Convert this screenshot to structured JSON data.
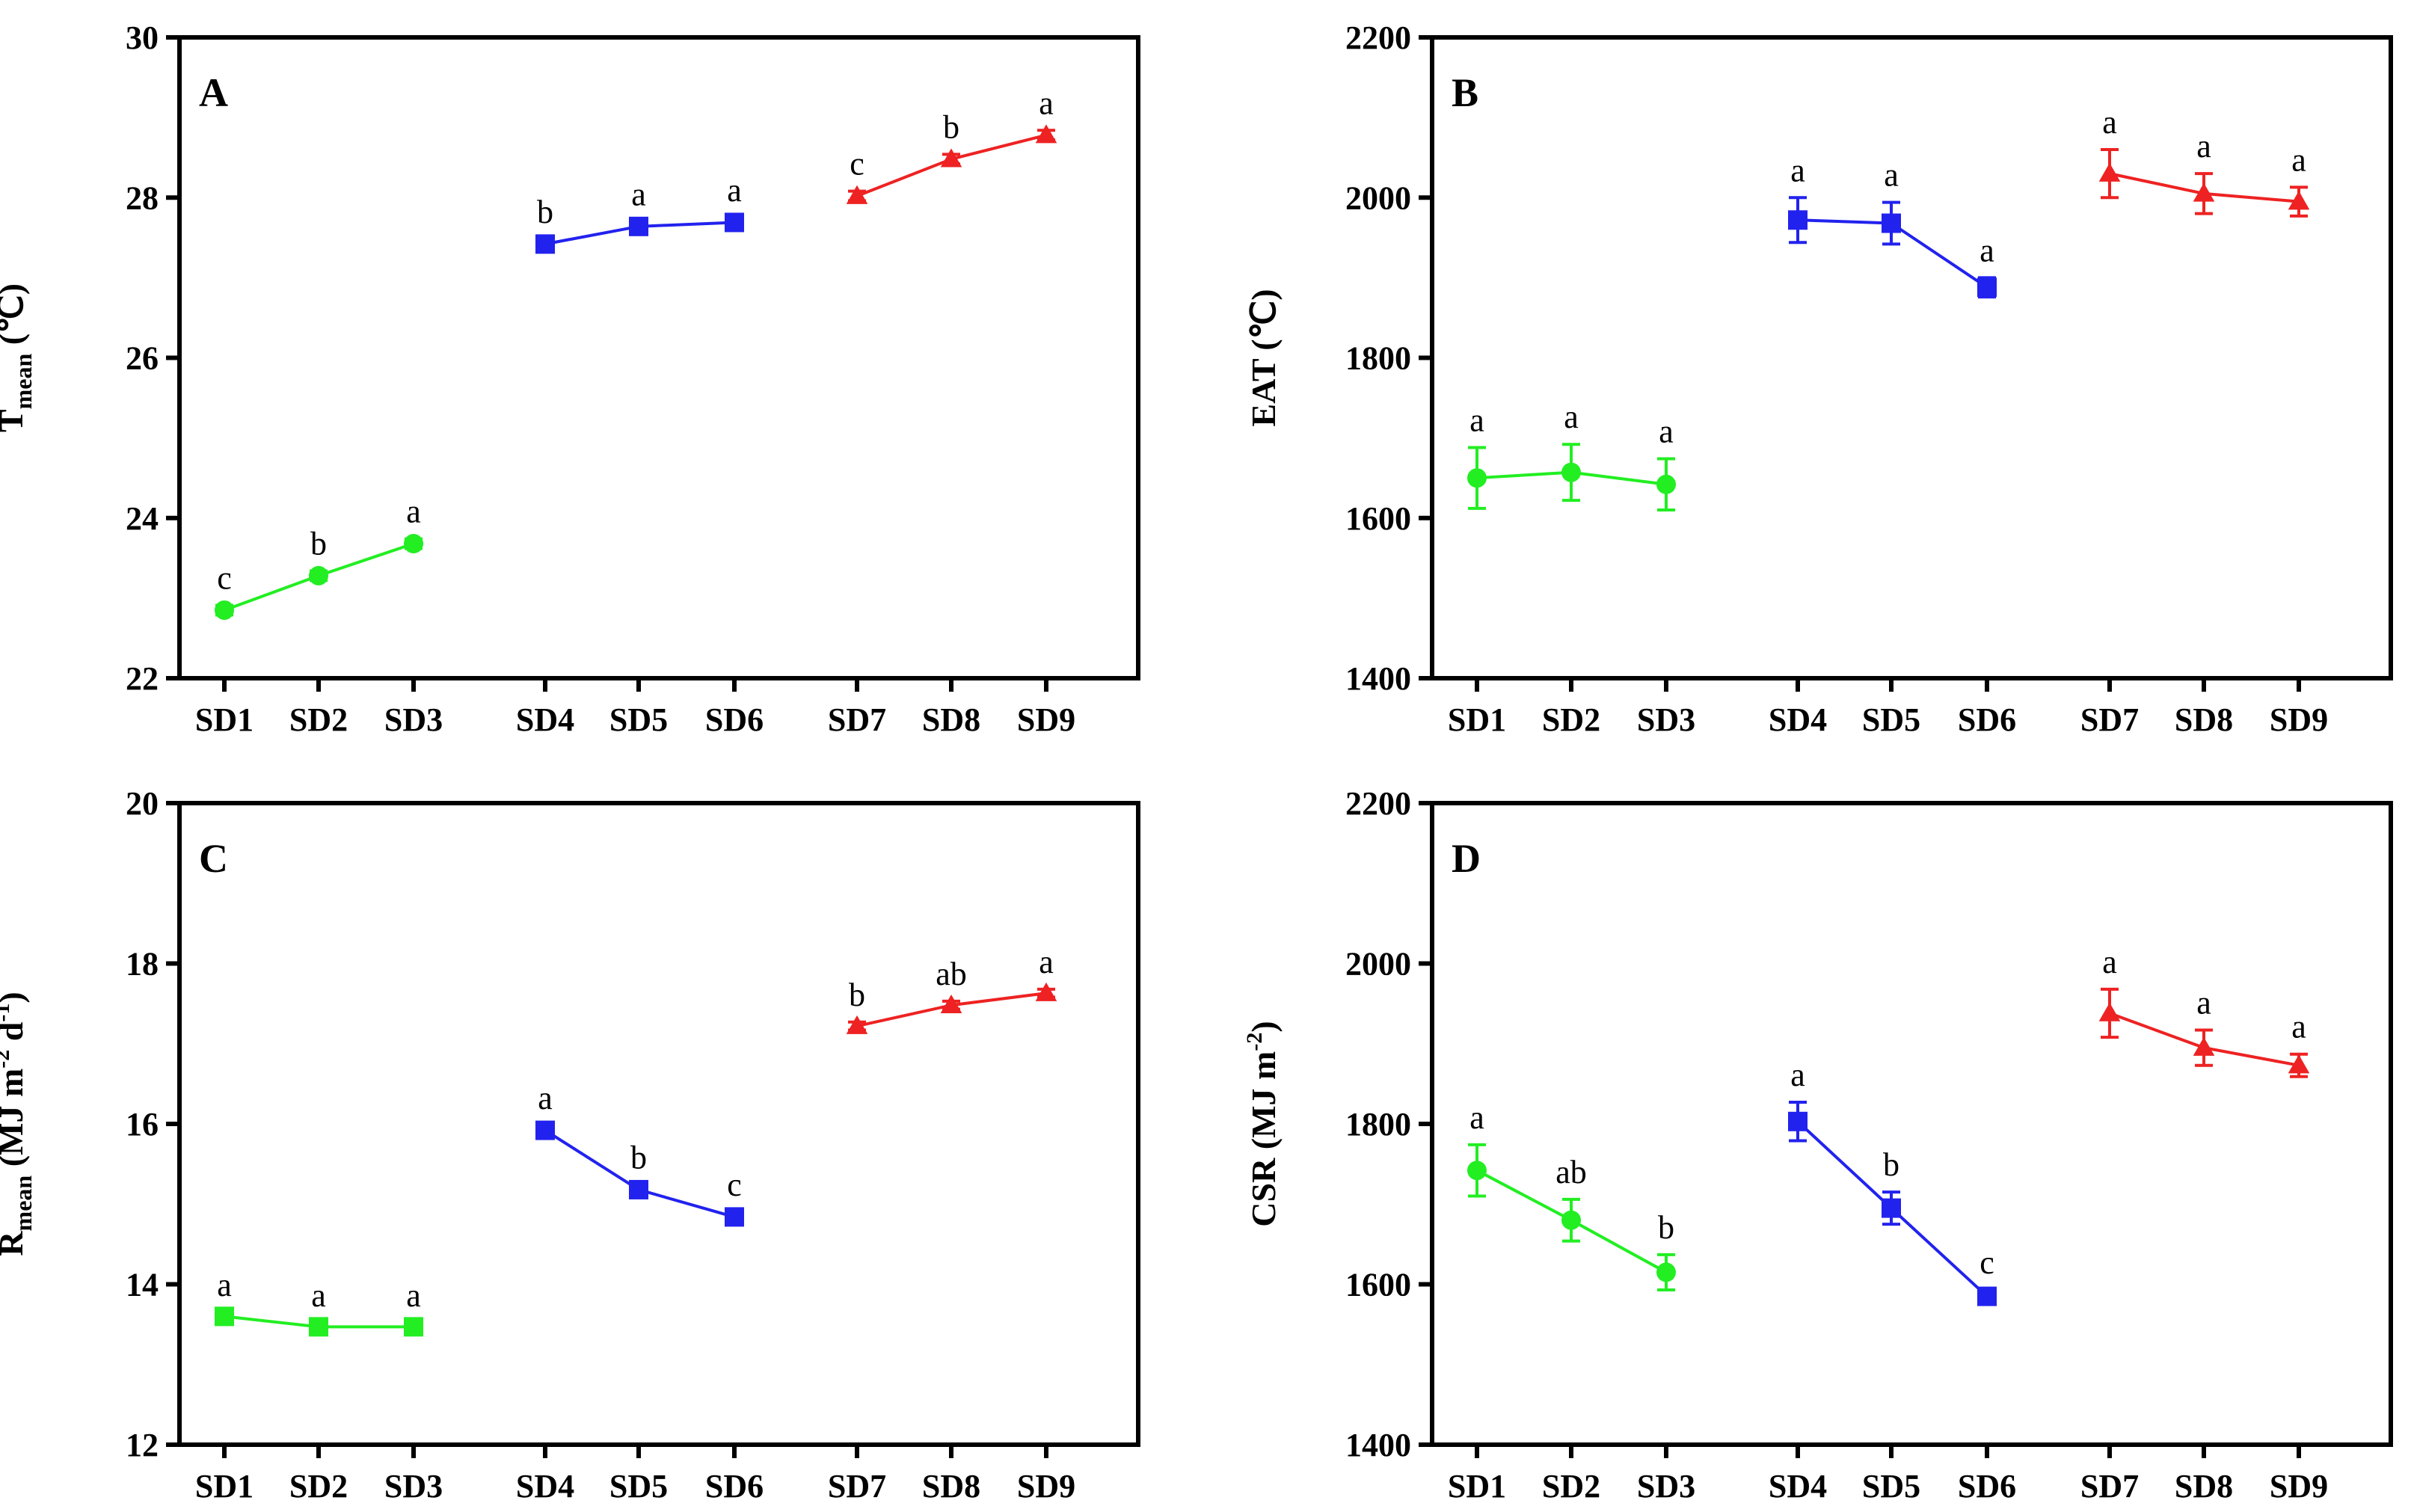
{
  "chart_data": [
    {
      "type": "line",
      "panel": "A",
      "ylabel": {
        "main": "T",
        "sub": "mean",
        "rest": " (℃)"
      },
      "ylim": [
        22,
        30
      ],
      "yticks": [
        22,
        24,
        26,
        28,
        30
      ],
      "categories": [
        "SD1",
        "SD2",
        "SD3",
        "SD4",
        "SD5",
        "SD6",
        "SD7",
        "SD8",
        "SD9"
      ],
      "series": [
        {
          "color": "#22ee22",
          "marker": "circle",
          "x": [
            "SD1",
            "SD2",
            "SD3"
          ],
          "values": [
            22.85,
            23.28,
            23.68
          ],
          "err": [
            0.06,
            0.06,
            0.06
          ],
          "labels": [
            "c",
            "b",
            "a"
          ]
        },
        {
          "color": "#2222ee",
          "marker": "square",
          "x": [
            "SD4",
            "SD5",
            "SD6"
          ],
          "values": [
            27.42,
            27.64,
            27.69
          ],
          "err": [
            0.06,
            0.06,
            0.06
          ],
          "labels": [
            "b",
            "a",
            "a"
          ]
        },
        {
          "color": "#ee2222",
          "marker": "triangle",
          "x": [
            "SD7",
            "SD8",
            "SD9"
          ],
          "values": [
            28.02,
            28.48,
            28.78
          ],
          "err": [
            0.06,
            0.06,
            0.06
          ],
          "labels": [
            "c",
            "b",
            "a"
          ]
        }
      ]
    },
    {
      "type": "line",
      "panel": "B",
      "ylabel": {
        "main": "EAT",
        "sub": "",
        "rest": " (℃)"
      },
      "ylim": [
        1400,
        2200
      ],
      "yticks": [
        1400,
        1600,
        1800,
        2000,
        2200
      ],
      "categories": [
        "SD1",
        "SD2",
        "SD3",
        "SD4",
        "SD5",
        "SD6",
        "SD7",
        "SD8",
        "SD9"
      ],
      "series": [
        {
          "color": "#22ee22",
          "marker": "circle",
          "x": [
            "SD1",
            "SD2",
            "SD3"
          ],
          "values": [
            1650,
            1657,
            1642
          ],
          "err": [
            38,
            35,
            32
          ],
          "labels": [
            "a",
            "a",
            "a"
          ]
        },
        {
          "color": "#2222ee",
          "marker": "square",
          "x": [
            "SD4",
            "SD5",
            "SD6"
          ],
          "values": [
            1972,
            1968,
            1888
          ],
          "err": [
            28,
            26,
            12
          ],
          "labels": [
            "a",
            "a",
            "a"
          ]
        },
        {
          "color": "#ee2222",
          "marker": "triangle",
          "x": [
            "SD7",
            "SD8",
            "SD9"
          ],
          "values": [
            2030,
            2005,
            1995
          ],
          "err": [
            30,
            25,
            18
          ],
          "labels": [
            "a",
            "a",
            "a"
          ]
        }
      ]
    },
    {
      "type": "line",
      "panel": "C",
      "ylabel": {
        "main": "R",
        "sub": "mean",
        "rest": " (MJ m",
        "sup1": "-2",
        "rest2": " d",
        "sup2": "-1",
        "rest3": ")"
      },
      "ylim": [
        12,
        20
      ],
      "yticks": [
        12,
        14,
        16,
        18,
        20
      ],
      "categories": [
        "SD1",
        "SD2",
        "SD3",
        "SD4",
        "SD5",
        "SD6",
        "SD7",
        "SD8",
        "SD9"
      ],
      "series": [
        {
          "color": "#22ee22",
          "marker": "square",
          "x": [
            "SD1",
            "SD2",
            "SD3"
          ],
          "values": [
            13.6,
            13.47,
            13.47
          ],
          "err": [
            0.05,
            0.05,
            0.05
          ],
          "labels": [
            "a",
            "a",
            "a"
          ]
        },
        {
          "color": "#2222ee",
          "marker": "square",
          "x": [
            "SD4",
            "SD5",
            "SD6"
          ],
          "values": [
            15.92,
            15.18,
            14.84
          ],
          "err": [
            0.06,
            0.06,
            0.06
          ],
          "labels": [
            "a",
            "b",
            "c"
          ]
        },
        {
          "color": "#ee2222",
          "marker": "triangle",
          "x": [
            "SD7",
            "SD8",
            "SD9"
          ],
          "values": [
            17.22,
            17.48,
            17.63
          ],
          "err": [
            0.05,
            0.05,
            0.05
          ],
          "labels": [
            "b",
            "ab",
            "a"
          ]
        }
      ]
    },
    {
      "type": "line",
      "panel": "D",
      "ylabel": {
        "main": "CSR",
        "sub": "",
        "rest": " (MJ m",
        "sup1": "-2",
        "rest2": "",
        "sup2": "",
        "rest3": ")"
      },
      "ylim": [
        1400,
        2200
      ],
      "yticks": [
        1400,
        1600,
        1800,
        2000,
        2200
      ],
      "categories": [
        "SD1",
        "SD2",
        "SD3",
        "SD4",
        "SD5",
        "SD6",
        "SD7",
        "SD8",
        "SD9"
      ],
      "series": [
        {
          "color": "#22ee22",
          "marker": "circle",
          "x": [
            "SD1",
            "SD2",
            "SD3"
          ],
          "values": [
            1742,
            1680,
            1615
          ],
          "err": [
            32,
            26,
            22
          ],
          "labels": [
            "a",
            "ab",
            "b"
          ]
        },
        {
          "color": "#2222ee",
          "marker": "square",
          "x": [
            "SD4",
            "SD5",
            "SD6"
          ],
          "values": [
            1803,
            1695,
            1585
          ],
          "err": [
            24,
            20,
            8
          ],
          "labels": [
            "a",
            "b",
            "c"
          ]
        },
        {
          "color": "#ee2222",
          "marker": "triangle",
          "x": [
            "SD7",
            "SD8",
            "SD9"
          ],
          "values": [
            1938,
            1895,
            1873
          ],
          "err": [
            30,
            22,
            14
          ],
          "labels": [
            "a",
            "a",
            "a"
          ]
        }
      ]
    }
  ]
}
